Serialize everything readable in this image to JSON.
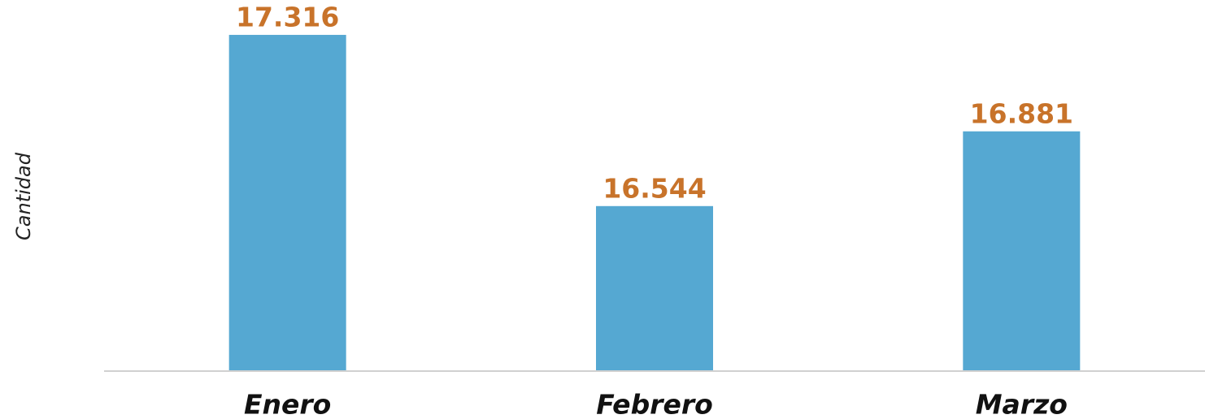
{
  "chart_data": {
    "type": "bar",
    "y_axis_label": "Cantidad",
    "categories": [
      "Enero",
      "Febrero",
      "Marzo"
    ],
    "values": [
      17316,
      16544,
      16881
    ],
    "value_labels": [
      "17.316",
      "16.544",
      "16.881"
    ],
    "color": "#55a8d2",
    "ylim": [
      15800,
      17400
    ]
  }
}
